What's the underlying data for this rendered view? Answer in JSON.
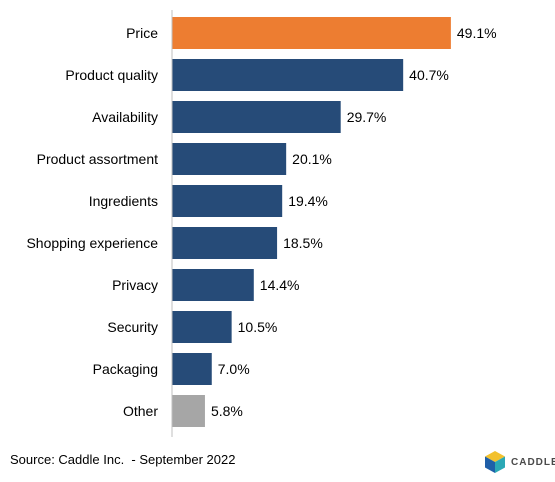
{
  "chart_data": {
    "type": "bar",
    "orientation": "horizontal",
    "categories": [
      "Price",
      "Product quality",
      "Availability",
      "Product assortment",
      "Ingredients",
      "Shopping experience",
      "Privacy",
      "Security",
      "Packaging",
      "Other"
    ],
    "values": [
      49.1,
      40.7,
      29.7,
      20.1,
      19.4,
      18.5,
      14.4,
      10.5,
      7.0,
      5.8
    ],
    "value_labels": [
      "49.1%",
      "40.7%",
      "29.7%",
      "20.1%",
      "19.4%",
      "18.5%",
      "14.4%",
      "10.5%",
      "7.0%",
      "5.8%"
    ],
    "bar_colors": [
      "#ED7D31",
      "#264B78",
      "#264B78",
      "#264B78",
      "#264B78",
      "#264B78",
      "#264B78",
      "#264B78",
      "#264B78",
      "#A6A6A6"
    ],
    "xlim": [
      0,
      50
    ],
    "grid": false,
    "legend": "none"
  },
  "footer": {
    "source": "Source: Caddle Inc.  - September 2022",
    "logo_text": "CADDLE"
  },
  "colors": {
    "highlight": "#ED7D31",
    "primary": "#264B78",
    "other": "#A6A6A6",
    "axis": "#BFBFBF",
    "logo_yellow": "#F2C12E",
    "logo_blue": "#1F5FA8",
    "logo_teal": "#2BA8B5"
  }
}
